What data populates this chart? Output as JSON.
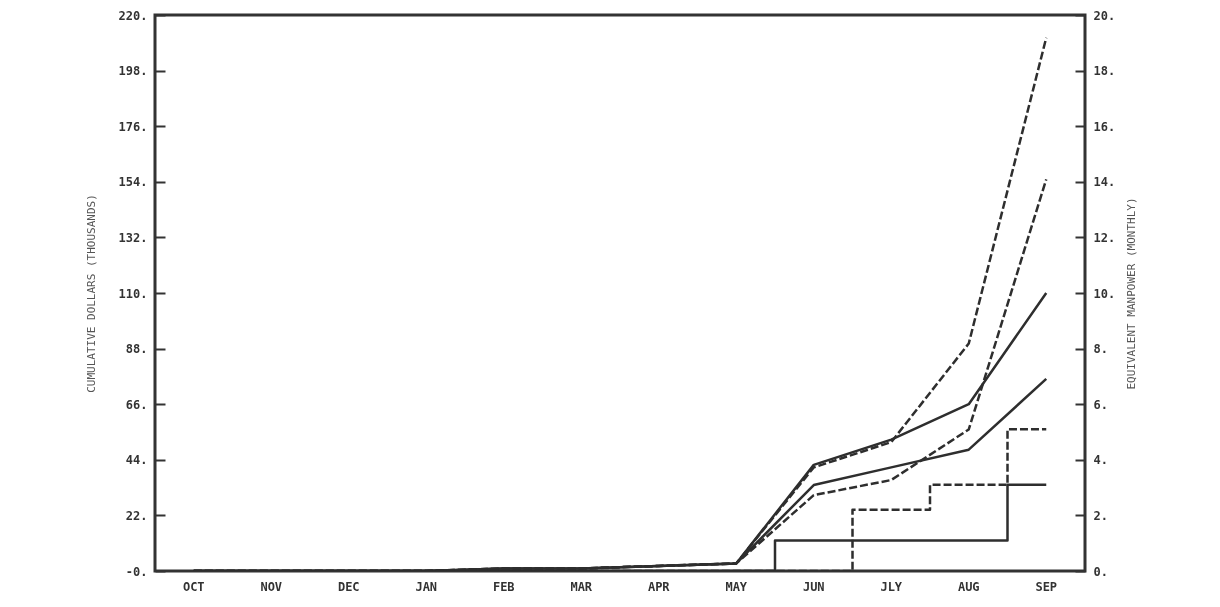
{
  "chart_data": {
    "type": "line",
    "ylabel": "CUMULATIVE DOLLARS (THOUSANDS)",
    "y2label": "EQUIVALENT MANPOWER (MONTHLY)",
    "categories": [
      "OCT",
      "NOV",
      "DEC",
      "JAN",
      "FEB",
      "MAR",
      "APR",
      "MAY",
      "JUN",
      "JLY",
      "AUG",
      "SEP"
    ],
    "ylim": [
      0,
      220
    ],
    "yticks": [
      {
        "value": 0,
        "label": "-0."
      },
      {
        "value": 22,
        "label": "22."
      },
      {
        "value": 44,
        "label": "44."
      },
      {
        "value": 66,
        "label": "66."
      },
      {
        "value": 88,
        "label": "88."
      },
      {
        "value": 110,
        "label": "110."
      },
      {
        "value": 132,
        "label": "132."
      },
      {
        "value": 154,
        "label": "154."
      },
      {
        "value": 176,
        "label": "176."
      },
      {
        "value": 198,
        "label": "198."
      },
      {
        "value": 220,
        "label": "220."
      }
    ],
    "y2lim": [
      0,
      20
    ],
    "y2ticks": [
      {
        "value": 0,
        "label": "0."
      },
      {
        "value": 2,
        "label": "2."
      },
      {
        "value": 4,
        "label": "4."
      },
      {
        "value": 6,
        "label": "6."
      },
      {
        "value": 8,
        "label": "8."
      },
      {
        "value": 10,
        "label": "10."
      },
      {
        "value": 12,
        "label": "12."
      },
      {
        "value": 14,
        "label": "14."
      },
      {
        "value": 16,
        "label": "16."
      },
      {
        "value": 18,
        "label": "18."
      },
      {
        "value": 20,
        "label": "20."
      }
    ],
    "series": [
      {
        "color": "#2e2e2e",
        "line_style": "solid",
        "values": [
          0,
          0,
          0,
          0,
          1,
          1,
          2,
          3,
          42,
          52,
          66,
          110
        ]
      },
      {
        "color": "#2e2e2e",
        "line_style": "solid",
        "values": [
          0,
          0,
          0,
          0,
          1,
          1,
          2,
          3,
          34,
          41,
          48,
          76
        ]
      },
      {
        "color": "#2e2e2e",
        "line_style": "dashed",
        "values": [
          0,
          0,
          0,
          0,
          1,
          1,
          2,
          3,
          41,
          51,
          90,
          211
        ]
      },
      {
        "color": "#2e2e2e",
        "line_style": "dashed",
        "values": [
          0,
          0,
          0,
          0,
          1,
          1,
          2,
          3,
          30,
          36,
          56,
          155
        ]
      },
      {
        "type": "step",
        "axis": "y2",
        "color": "#2e2e2e",
        "line_style": "solid",
        "values": [
          0,
          0,
          0,
          0,
          0,
          0,
          0,
          0,
          1.1,
          1.1,
          1.1,
          3.1
        ]
      },
      {
        "type": "step",
        "axis": "y2",
        "color": "#2e2e2e",
        "line_style": "dashed",
        "values": [
          0,
          0,
          0,
          0,
          0,
          0,
          0,
          0,
          0,
          2.2,
          3.1,
          5.1
        ]
      }
    ]
  }
}
